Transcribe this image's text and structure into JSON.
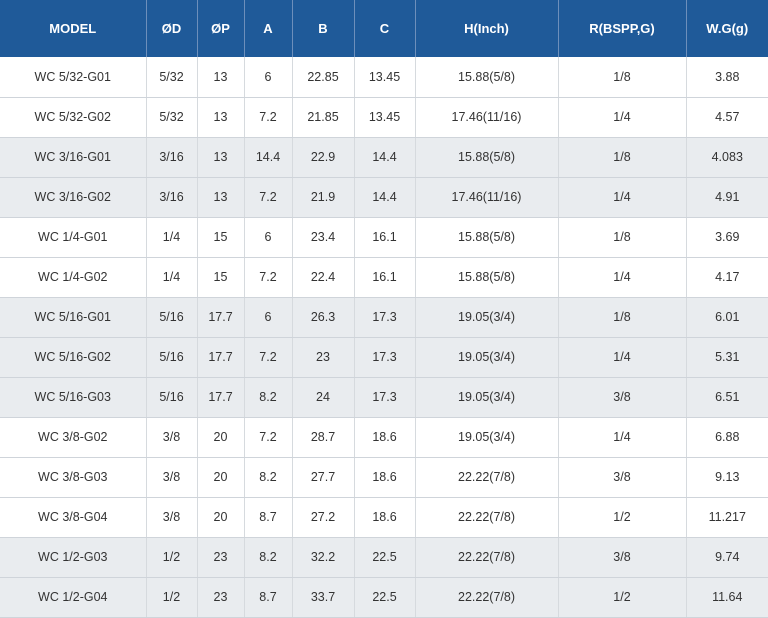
{
  "table": {
    "headers": [
      "MODEL",
      "ØD",
      "ØP",
      "A",
      "B",
      "C",
      "H(Inch)",
      "R(BSPP,G)",
      "W.G(g)"
    ],
    "rows": [
      [
        "WC 5/32-G01",
        "5/32",
        "13",
        "6",
        "22.85",
        "13.45",
        "15.88(5/8)",
        "1/8",
        "3.88"
      ],
      [
        "WC 5/32-G02",
        "5/32",
        "13",
        "7.2",
        "21.85",
        "13.45",
        "17.46(11/16)",
        "1/4",
        "4.57"
      ],
      [
        "WC 3/16-G01",
        "3/16",
        "13",
        "14.4",
        "22.9",
        "14.4",
        "15.88(5/8)",
        "1/8",
        "4.083"
      ],
      [
        "WC 3/16-G02",
        "3/16",
        "13",
        "7.2",
        "21.9",
        "14.4",
        "17.46(11/16)",
        "1/4",
        "4.91"
      ],
      [
        "WC 1/4-G01",
        "1/4",
        "15",
        "6",
        "23.4",
        "16.1",
        "15.88(5/8)",
        "1/8",
        "3.69"
      ],
      [
        "WC 1/4-G02",
        "1/4",
        "15",
        "7.2",
        "22.4",
        "16.1",
        "15.88(5/8)",
        "1/4",
        "4.17"
      ],
      [
        "WC 5/16-G01",
        "5/16",
        "17.7",
        "6",
        "26.3",
        "17.3",
        "19.05(3/4)",
        "1/8",
        "6.01"
      ],
      [
        "WC 5/16-G02",
        "5/16",
        "17.7",
        "7.2",
        "23",
        "17.3",
        "19.05(3/4)",
        "1/4",
        "5.31"
      ],
      [
        "WC 5/16-G03",
        "5/16",
        "17.7",
        "8.2",
        "24",
        "17.3",
        "19.05(3/4)",
        "3/8",
        "6.51"
      ],
      [
        "WC 3/8-G02",
        "3/8",
        "20",
        "7.2",
        "28.7",
        "18.6",
        "19.05(3/4)",
        "1/4",
        "6.88"
      ],
      [
        "WC 3/8-G03",
        "3/8",
        "20",
        "8.2",
        "27.7",
        "18.6",
        "22.22(7/8)",
        "3/8",
        "9.13"
      ],
      [
        "WC 3/8-G04",
        "3/8",
        "20",
        "8.7",
        "27.2",
        "18.6",
        "22.22(7/8)",
        "1/2",
        "11.217"
      ],
      [
        "WC 1/2-G03",
        "1/2",
        "23",
        "8.2",
        "32.2",
        "22.5",
        "22.22(7/8)",
        "3/8",
        "9.74"
      ],
      [
        "WC 1/2-G04",
        "1/2",
        "23",
        "8.7",
        "33.7",
        "22.5",
        "22.22(7/8)",
        "1/2",
        "11.64"
      ]
    ]
  },
  "colors": {
    "header_background": "#1f5a99",
    "header_text": "#ffffff",
    "row_shade": "#e9ecef",
    "row_plain": "#ffffff"
  }
}
